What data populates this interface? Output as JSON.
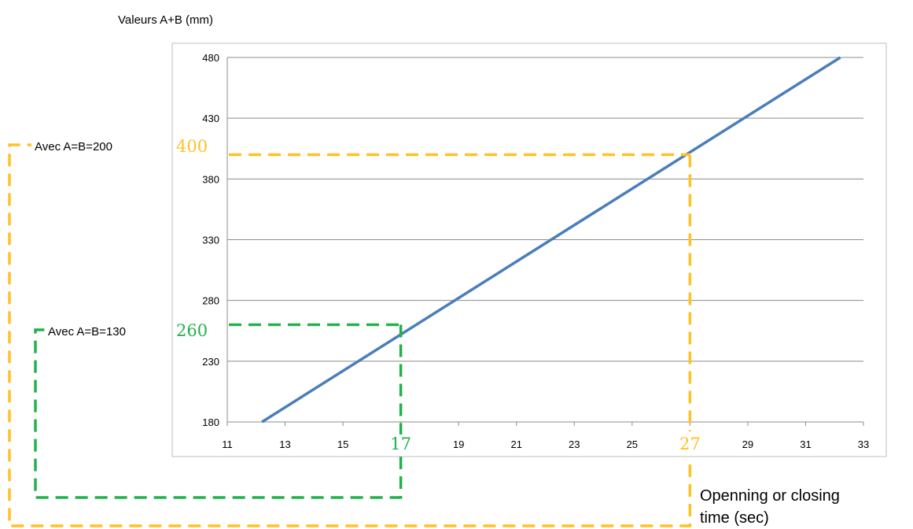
{
  "chart_data": {
    "type": "line",
    "title": "",
    "ylabel": "Valeurs A+B (mm)",
    "xlabel_lines": [
      "Openning or closing",
      "time (sec)"
    ],
    "xlim": [
      11,
      33
    ],
    "ylim": [
      180,
      480
    ],
    "x_ticks": [
      11,
      13,
      15,
      17,
      19,
      21,
      23,
      25,
      27,
      29,
      31,
      33
    ],
    "y_ticks": [
      180,
      230,
      280,
      330,
      380,
      430,
      480
    ],
    "grid": "horizontal",
    "series": [
      {
        "x": [
          12.2,
          32.2
        ],
        "y": [
          180,
          480
        ],
        "color": "#4a7ebb"
      }
    ],
    "annotations": [
      {
        "label": "Avec  A=B=130",
        "x": 17,
        "y": 260,
        "x_text": "17",
        "y_text": "260",
        "color": "#22b14c"
      },
      {
        "label": "Avec  A=B=200",
        "x": 27,
        "y": 400,
        "x_text": "27",
        "y_text": "400",
        "color": "#ffc125"
      }
    ]
  }
}
